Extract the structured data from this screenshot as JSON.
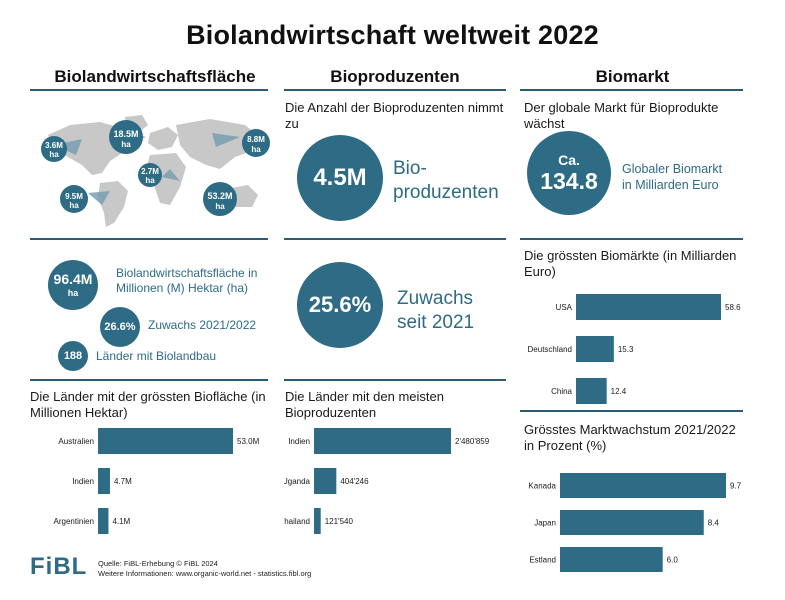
{
  "title": "Biolandwirtschaft weltweit 2022",
  "columns": {
    "left": "Biolandwirtschaftsfläche",
    "middle": "Bioproduzenten",
    "right": "Biomarkt"
  },
  "map": {
    "land_color": "#c8c8c8",
    "bubble_color": "#2e6b85",
    "bubbles": [
      {
        "value": "3.6M",
        "unit": "ha"
      },
      {
        "value": "18.5M",
        "unit": "ha"
      },
      {
        "value": "8.8M",
        "unit": "ha"
      },
      {
        "value": "2.7M",
        "unit": "ha"
      },
      {
        "value": "9.5M",
        "unit": "ha"
      },
      {
        "value": "53.2M",
        "unit": "ha"
      }
    ]
  },
  "area_stats": {
    "total_value": "96.4M",
    "total_unit": "ha",
    "total_label": "Biolandwirtschaftsfläche in Millionen (M) Hektar (ha)",
    "growth_value": "26.6%",
    "growth_label": "Zuwachs 2021/2022",
    "countries_value": "188",
    "countries_label": "Länder mit Biolandbau"
  },
  "producers": {
    "intro": "Die Anzahl der Bioproduzenten nimmt zu",
    "count_value": "4.5M",
    "count_label_1": "Bio-",
    "count_label_2": "produzenten",
    "growth_value": "25.6%",
    "growth_label_1": "Zuwachs",
    "growth_label_2": "seit 2021"
  },
  "market": {
    "intro": "Der globale Markt für Bioprodukte wächst",
    "ca": "Ca.",
    "value": "134.8",
    "label_1": "Globaler Biomarkt",
    "label_2": "in Milliarden Euro"
  },
  "footer": {
    "logo": "FiBL",
    "source": "Quelle: FiBL-Erhebung © FiBL 2024",
    "info": "Weitere Informationen: www.organic-world.net - statistics.fibl.org"
  },
  "colors": {
    "bar": "#2e6b85",
    "accent": "#2e6b85",
    "rule": "#2c5c74"
  },
  "chart_data": [
    {
      "type": "bar",
      "orientation": "horizontal",
      "title": "Die Länder mit der grössten Biofläche (in Millionen Hektar)",
      "categories": [
        "Australien",
        "Indien",
        "Argentinien"
      ],
      "values": [
        53.0,
        4.7,
        4.1
      ],
      "labels": [
        "53.0M",
        "4.7M",
        "4.1M"
      ],
      "xlim": [
        0,
        53.0
      ]
    },
    {
      "type": "bar",
      "orientation": "horizontal",
      "title": "Die Länder mit den meisten Bioproduzenten",
      "categories": [
        "Indien",
        "Uganda",
        "Thailand"
      ],
      "values": [
        2480859,
        404246,
        121540
      ],
      "labels": [
        "2'480'859",
        "404'246",
        "121'540"
      ],
      "xlim": [
        0,
        2480859
      ]
    },
    {
      "type": "bar",
      "orientation": "horizontal",
      "title": "Die grössten Biomärkte (in Milliarden Euro)",
      "categories": [
        "USA",
        "Deutschland",
        "China"
      ],
      "values": [
        58.6,
        15.3,
        12.4
      ],
      "labels": [
        "58.6",
        "15.3",
        "12.4"
      ],
      "xlim": [
        0,
        58.6
      ]
    },
    {
      "type": "bar",
      "orientation": "horizontal",
      "title": "Grösstes Marktwachstum 2021/2022 in Prozent (%)",
      "categories": [
        "Kanada",
        "Japan",
        "Estland"
      ],
      "values": [
        9.7,
        8.4,
        6.0
      ],
      "labels": [
        "9.7",
        "8.4",
        "6.0"
      ],
      "xlim": [
        0,
        9.7
      ]
    }
  ]
}
